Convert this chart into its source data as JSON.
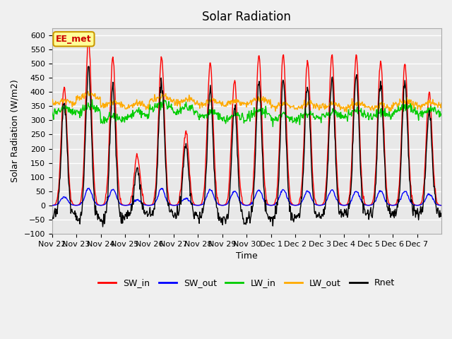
{
  "title": "Solar Radiation",
  "xlabel": "Time",
  "ylabel": "Solar Radiation (W/m2)",
  "ylim": [
    -100,
    625
  ],
  "yticks": [
    -100,
    -50,
    0,
    50,
    100,
    150,
    200,
    250,
    300,
    350,
    400,
    450,
    500,
    550,
    600
  ],
  "colors": {
    "SW_in": "#ff0000",
    "SW_out": "#0000ff",
    "LW_in": "#00cc00",
    "LW_out": "#ffaa00",
    "Rnet": "#000000"
  },
  "annotation_text": "EE_met",
  "annotation_color": "#cc0000",
  "annotation_bg": "#ffff99",
  "annotation_border": "#cc9900",
  "background_color": "#e8e8e8",
  "grid_color": "#ffffff",
  "x_tick_labels": [
    "Nov 22",
    "Nov 23",
    "Nov 24",
    "Nov 25",
    "Nov 26",
    "Nov 27",
    "Nov 28",
    "Nov 29",
    "Nov 30",
    "Dec 1",
    "Dec 2",
    "Dec 3",
    "Dec 4",
    "Dec 5",
    "Dec 6",
    "Dec 7"
  ],
  "sw_peaks": [
    420,
    590,
    520,
    175,
    525,
    265,
    500,
    440,
    530,
    535,
    510,
    530,
    530,
    510,
    500,
    400
  ],
  "sw_out_peaks": [
    30,
    60,
    55,
    20,
    60,
    25,
    55,
    50,
    55,
    55,
    50,
    55,
    50,
    50,
    50,
    40
  ],
  "lw_in_base": [
    325,
    330,
    295,
    310,
    340,
    330,
    310,
    300,
    315,
    300,
    305,
    310,
    315,
    310,
    330,
    320
  ],
  "lw_out_base": [
    355,
    380,
    350,
    345,
    370,
    360,
    355,
    355,
    360,
    345,
    345,
    345,
    345,
    340,
    355,
    350
  ]
}
